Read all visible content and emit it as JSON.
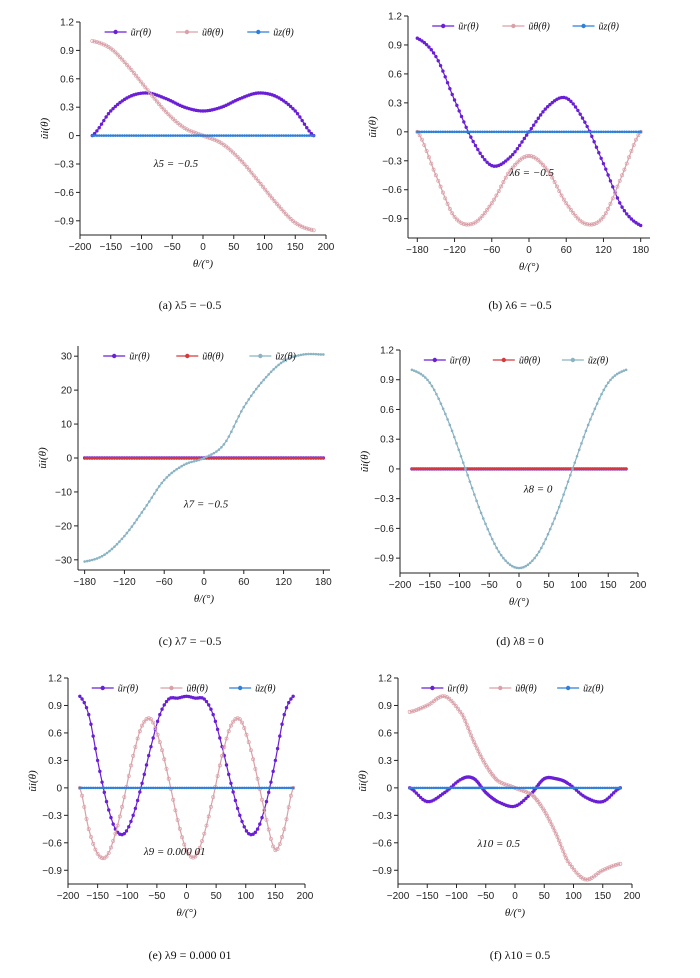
{
  "colors": {
    "r": "#6a1fd6",
    "theta": "#d9a0a8",
    "theta_red": "#d43a3a",
    "z": "#2f7fd8",
    "z_grey": "#8ab3c4",
    "axis": "#222222"
  },
  "chart_data": [
    {
      "id": "a",
      "type": "line",
      "caption": "(a) λ5 = −0.5",
      "annotation": "λ5 = −0.5",
      "xlabel": "θ/(°)",
      "ylabel": "ũi(θ)",
      "xlim": [
        -200,
        200
      ],
      "ylim": [
        -1.05,
        1.2
      ],
      "xticks": [
        -200,
        -150,
        -100,
        -50,
        0,
        50,
        100,
        150,
        200
      ],
      "yticks": [
        -0.9,
        -0.6,
        -0.3,
        0,
        0.3,
        0.6,
        0.9,
        1.2
      ],
      "legend": [
        "ũr(θ)",
        "ũθ(θ)",
        "ũz(θ)"
      ],
      "x": [
        -180,
        -150,
        -120,
        -90,
        -60,
        -30,
        0,
        30,
        60,
        90,
        120,
        150,
        180
      ],
      "series": [
        {
          "name": "ũr(θ)",
          "values": [
            0.0,
            0.26,
            0.41,
            0.45,
            0.39,
            0.3,
            0.26,
            0.3,
            0.39,
            0.45,
            0.41,
            0.26,
            0.0
          ]
        },
        {
          "name": "ũθ(θ)",
          "values": [
            1.0,
            0.92,
            0.72,
            0.48,
            0.25,
            0.08,
            0.0,
            -0.08,
            -0.25,
            -0.48,
            -0.72,
            -0.92,
            -1.0
          ]
        },
        {
          "name": "ũz(θ)",
          "values": [
            0,
            0,
            0,
            0,
            0,
            0,
            0,
            0,
            0,
            0,
            0,
            0,
            0
          ]
        }
      ]
    },
    {
      "id": "b",
      "type": "line",
      "caption": "(b) λ6 = −0.5",
      "annotation": "λ6 = −0.5",
      "xlabel": "θ/(°)",
      "ylabel": "ũi(θ)",
      "xlim": [
        -195,
        195
      ],
      "ylim": [
        -1.1,
        1.2
      ],
      "xticks": [
        -180,
        -120,
        -60,
        0,
        60,
        120,
        180
      ],
      "yticks": [
        -0.9,
        -0.6,
        -0.3,
        0,
        0.3,
        0.6,
        0.9,
        1.2
      ],
      "legend": [
        "ũr(θ)",
        "ũθ(θ)",
        "ũz(θ)"
      ],
      "x": [
        -180,
        -150,
        -120,
        -90,
        -60,
        -30,
        0,
        30,
        60,
        90,
        120,
        150,
        180
      ],
      "series": [
        {
          "name": "ũr(θ)",
          "values": [
            0.97,
            0.78,
            0.33,
            -0.1,
            -0.35,
            -0.26,
            0.0,
            0.26,
            0.35,
            0.1,
            -0.33,
            -0.78,
            -0.97
          ]
        },
        {
          "name": "ũθ(θ)",
          "values": [
            0.0,
            -0.45,
            -0.88,
            -0.95,
            -0.74,
            -0.4,
            -0.25,
            -0.4,
            -0.74,
            -0.95,
            -0.88,
            -0.45,
            0.0
          ]
        },
        {
          "name": "ũz(θ)",
          "values": [
            0,
            0,
            0,
            0,
            0,
            0,
            0,
            0,
            0,
            0,
            0,
            0,
            0
          ]
        }
      ]
    },
    {
      "id": "c",
      "type": "line",
      "caption": "(c) λ7 = −0.5",
      "annotation": "λ7 = −0.5",
      "xlabel": "θ/(°)",
      "ylabel": "ũi(θ)",
      "xlim": [
        -190,
        190
      ],
      "ylim": [
        -33,
        33
      ],
      "xticks": [
        -180,
        -120,
        -60,
        0,
        60,
        120,
        180
      ],
      "yticks": [
        -30,
        -20,
        -10,
        0,
        10,
        20,
        30
      ],
      "legend": [
        "ũr(θ)",
        "ũθ(θ)",
        "ũz(θ)"
      ],
      "x": [
        -180,
        -150,
        -120,
        -90,
        -60,
        -30,
        0,
        30,
        60,
        90,
        120,
        150,
        180
      ],
      "series": [
        {
          "name": "ũr(θ)",
          "values": [
            0,
            0,
            0,
            0,
            0,
            0,
            0,
            0,
            0,
            0,
            0,
            0,
            0
          ]
        },
        {
          "name": "ũθ(θ)",
          "values": [
            0,
            0,
            0,
            0,
            0,
            0,
            0,
            0,
            0,
            0,
            0,
            0,
            0
          ]
        },
        {
          "name": "ũz(θ)",
          "values": [
            -30.5,
            -28.5,
            -23,
            -15,
            -6.5,
            -2,
            0,
            4,
            15,
            23,
            28.5,
            30.5,
            30.5
          ]
        }
      ]
    },
    {
      "id": "d",
      "type": "line",
      "caption": "(d) λ8 = 0",
      "annotation": "λ8 = 0",
      "xlabel": "θ/(°)",
      "ylabel": "ũi(θ)",
      "xlim": [
        -200,
        200
      ],
      "ylim": [
        -1.05,
        1.2
      ],
      "xticks": [
        -200,
        -150,
        -100,
        -50,
        0,
        50,
        100,
        150,
        200
      ],
      "yticks": [
        -0.9,
        -0.6,
        -0.3,
        0,
        0.3,
        0.6,
        0.9,
        1.2
      ],
      "legend": [
        "ũr(θ)",
        "ũθ(θ)",
        "ũz(θ)"
      ],
      "x": [
        -180,
        -150,
        -120,
        -90,
        -60,
        -30,
        0,
        30,
        60,
        90,
        120,
        150,
        180
      ],
      "series": [
        {
          "name": "ũr(θ)",
          "values": [
            0,
            0,
            0,
            0,
            0,
            0,
            0,
            0,
            0,
            0,
            0,
            0,
            0
          ]
        },
        {
          "name": "ũθ(θ)",
          "values": [
            0,
            0,
            0,
            0,
            0,
            0,
            0,
            0,
            0,
            0,
            0,
            0,
            0
          ]
        },
        {
          "name": "ũz(θ)",
          "values": [
            1.0,
            0.87,
            0.5,
            0.0,
            -0.5,
            -0.87,
            -1.0,
            -0.87,
            -0.5,
            0.0,
            0.5,
            0.87,
            1.0
          ]
        }
      ]
    },
    {
      "id": "e",
      "type": "line",
      "caption": "(e) λ9 = 0.000 01",
      "annotation": "λ9 = 0.000 01",
      "xlabel": "θ/(°)",
      "ylabel": "ũi(θ)",
      "xlim": [
        -200,
        200
      ],
      "ylim": [
        -1.05,
        1.2
      ],
      "xticks": [
        -200,
        -150,
        -100,
        -50,
        0,
        50,
        100,
        150,
        200
      ],
      "yticks": [
        -0.9,
        -0.6,
        -0.3,
        0,
        0.3,
        0.6,
        0.9,
        1.2
      ],
      "legend": [
        "ũr(θ)",
        "ũθ(θ)",
        "ũz(θ)"
      ],
      "x": [
        -180,
        -165,
        -150,
        -135,
        -120,
        -105,
        -90,
        -75,
        -60,
        -45,
        -30,
        -15,
        0,
        15,
        30,
        45,
        60,
        75,
        90,
        105,
        120,
        135,
        150,
        165,
        180
      ],
      "series": [
        {
          "name": "ũr(θ)",
          "values": [
            1.0,
            0.8,
            0.3,
            -0.15,
            -0.45,
            -0.5,
            -0.3,
            0.05,
            0.45,
            0.8,
            0.97,
            0.98,
            1.0,
            0.98,
            0.97,
            0.8,
            0.45,
            0.05,
            -0.3,
            -0.5,
            -0.45,
            -0.15,
            0.3,
            0.8,
            1.0
          ]
        },
        {
          "name": "ũθ(θ)",
          "values": [
            0.0,
            -0.45,
            -0.72,
            -0.75,
            -0.5,
            -0.1,
            0.35,
            0.68,
            0.75,
            0.5,
            0.1,
            -0.35,
            -0.68,
            -0.75,
            -0.5,
            -0.1,
            0.35,
            0.68,
            0.75,
            0.5,
            0.1,
            -0.35,
            -0.68,
            -0.45,
            0.0
          ]
        },
        {
          "name": "ũz(θ)",
          "values": [
            0,
            0,
            0,
            0,
            0,
            0,
            0,
            0,
            0,
            0,
            0,
            0,
            0,
            0,
            0,
            0,
            0,
            0,
            0,
            0,
            0,
            0,
            0,
            0,
            0
          ]
        }
      ]
    },
    {
      "id": "f",
      "type": "line",
      "caption": "(f) λ10 = 0.5",
      "annotation": "λ10 = 0.5",
      "xlabel": "θ/(°)",
      "ylabel": "ũi(θ)",
      "xlim": [
        -200,
        200
      ],
      "ylim": [
        -1.05,
        1.2
      ],
      "xticks": [
        -200,
        -150,
        -100,
        -50,
        0,
        50,
        100,
        150,
        200
      ],
      "yticks": [
        -0.9,
        -0.6,
        -0.3,
        0,
        0.3,
        0.6,
        0.9,
        1.2
      ],
      "legend": [
        "ũr(θ)",
        "ũθ(θ)",
        "ũz(θ)"
      ],
      "x": [
        -180,
        -150,
        -120,
        -90,
        -70,
        -50,
        -30,
        0,
        30,
        50,
        70,
        90,
        120,
        150,
        180
      ],
      "series": [
        {
          "name": "ũr(θ)",
          "values": [
            0.0,
            -0.15,
            -0.05,
            0.1,
            0.1,
            -0.05,
            -0.15,
            -0.2,
            -0.05,
            0.1,
            0.1,
            0.05,
            -0.1,
            -0.15,
            0.0
          ]
        },
        {
          "name": "ũθ(θ)",
          "values": [
            0.83,
            0.9,
            1.0,
            0.8,
            0.5,
            0.25,
            0.08,
            0.0,
            -0.08,
            -0.25,
            -0.5,
            -0.8,
            -1.0,
            -0.9,
            -0.83
          ]
        },
        {
          "name": "ũz(θ)",
          "values": [
            0,
            0,
            0,
            0,
            0,
            0,
            0,
            0,
            0,
            0,
            0,
            0,
            0,
            0,
            0
          ]
        }
      ]
    }
  ]
}
